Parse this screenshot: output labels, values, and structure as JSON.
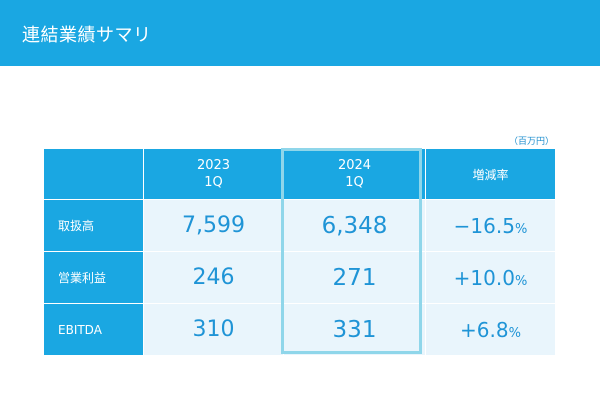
{
  "header": {
    "title": "連結業績サマリ"
  },
  "unit_note": "（百万円）",
  "table": {
    "columns": [
      {
        "year": "2023",
        "quarter": "1Q"
      },
      {
        "year": "2024",
        "quarter": "1Q"
      }
    ],
    "change_header": "増減率",
    "rows": [
      {
        "label": "取扱高",
        "v2023": "7,599",
        "v2024": "6,348",
        "change": "−16.5",
        "pct": "%"
      },
      {
        "label": "営業利益",
        "v2023": "246",
        "v2024": "271",
        "change": "+10.0",
        "pct": "%"
      },
      {
        "label": "EBITDA",
        "v2023": "310",
        "v2024": "331",
        "change": "+6.8",
        "pct": "%"
      }
    ]
  },
  "colors": {
    "header_bg": "#1aa7e2",
    "cell_bg": "#e9f5fc",
    "value_text": "#1f94d6",
    "highlight_border": "#8fd6ea"
  }
}
